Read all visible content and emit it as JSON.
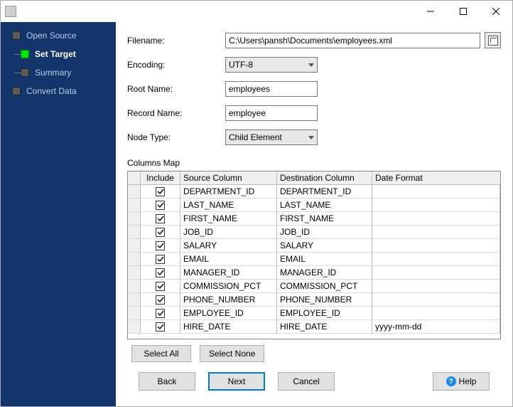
{
  "window": {
    "title": ""
  },
  "sidebar": {
    "steps": [
      {
        "label": "Open Source",
        "state": "done"
      },
      {
        "label": "Set Target",
        "state": "active"
      },
      {
        "label": "Summary",
        "state": "pending"
      },
      {
        "label": "Convert Data",
        "state": "pending"
      }
    ]
  },
  "form": {
    "filename_label": "Filename:",
    "filename_value": "C:\\Users\\pansh\\Documents\\employees.xml",
    "encoding_label": "Encoding:",
    "encoding_value": "UTF-8",
    "rootname_label": "Root Name:",
    "rootname_value": "employees",
    "recordname_label": "Record Name:",
    "recordname_value": "employee",
    "nodetype_label": "Node Type:",
    "nodetype_value": "Child Element"
  },
  "grid": {
    "section_label": "Columns Map",
    "headers": {
      "include": "Include",
      "source": "Source Column",
      "destination": "Destination Column",
      "dateformat": "Date Format"
    },
    "rows": [
      {
        "include": true,
        "src": "DEPARTMENT_ID",
        "dst": "DEPARTMENT_ID",
        "df": ""
      },
      {
        "include": true,
        "src": "LAST_NAME",
        "dst": "LAST_NAME",
        "df": ""
      },
      {
        "include": true,
        "src": "FIRST_NAME",
        "dst": "FIRST_NAME",
        "df": ""
      },
      {
        "include": true,
        "src": "JOB_ID",
        "dst": "JOB_ID",
        "df": ""
      },
      {
        "include": true,
        "src": "SALARY",
        "dst": "SALARY",
        "df": ""
      },
      {
        "include": true,
        "src": "EMAIL",
        "dst": "EMAIL",
        "df": ""
      },
      {
        "include": true,
        "src": "MANAGER_ID",
        "dst": "MANAGER_ID",
        "df": ""
      },
      {
        "include": true,
        "src": "COMMISSION_PCT",
        "dst": "COMMISSION_PCT",
        "df": ""
      },
      {
        "include": true,
        "src": "PHONE_NUMBER",
        "dst": "PHONE_NUMBER",
        "df": ""
      },
      {
        "include": true,
        "src": "EMPLOYEE_ID",
        "dst": "EMPLOYEE_ID",
        "df": ""
      },
      {
        "include": true,
        "src": "HIRE_DATE",
        "dst": "HIRE_DATE",
        "df": "yyyy-mm-dd"
      }
    ]
  },
  "buttons": {
    "select_all": "Select All",
    "select_none": "Select None",
    "back": "Back",
    "next": "Next",
    "cancel": "Cancel",
    "help": "Help"
  },
  "colors": {
    "sidebar_bg": "#14356b",
    "active_step": "#00e800",
    "primary_border": "#0078d7"
  }
}
